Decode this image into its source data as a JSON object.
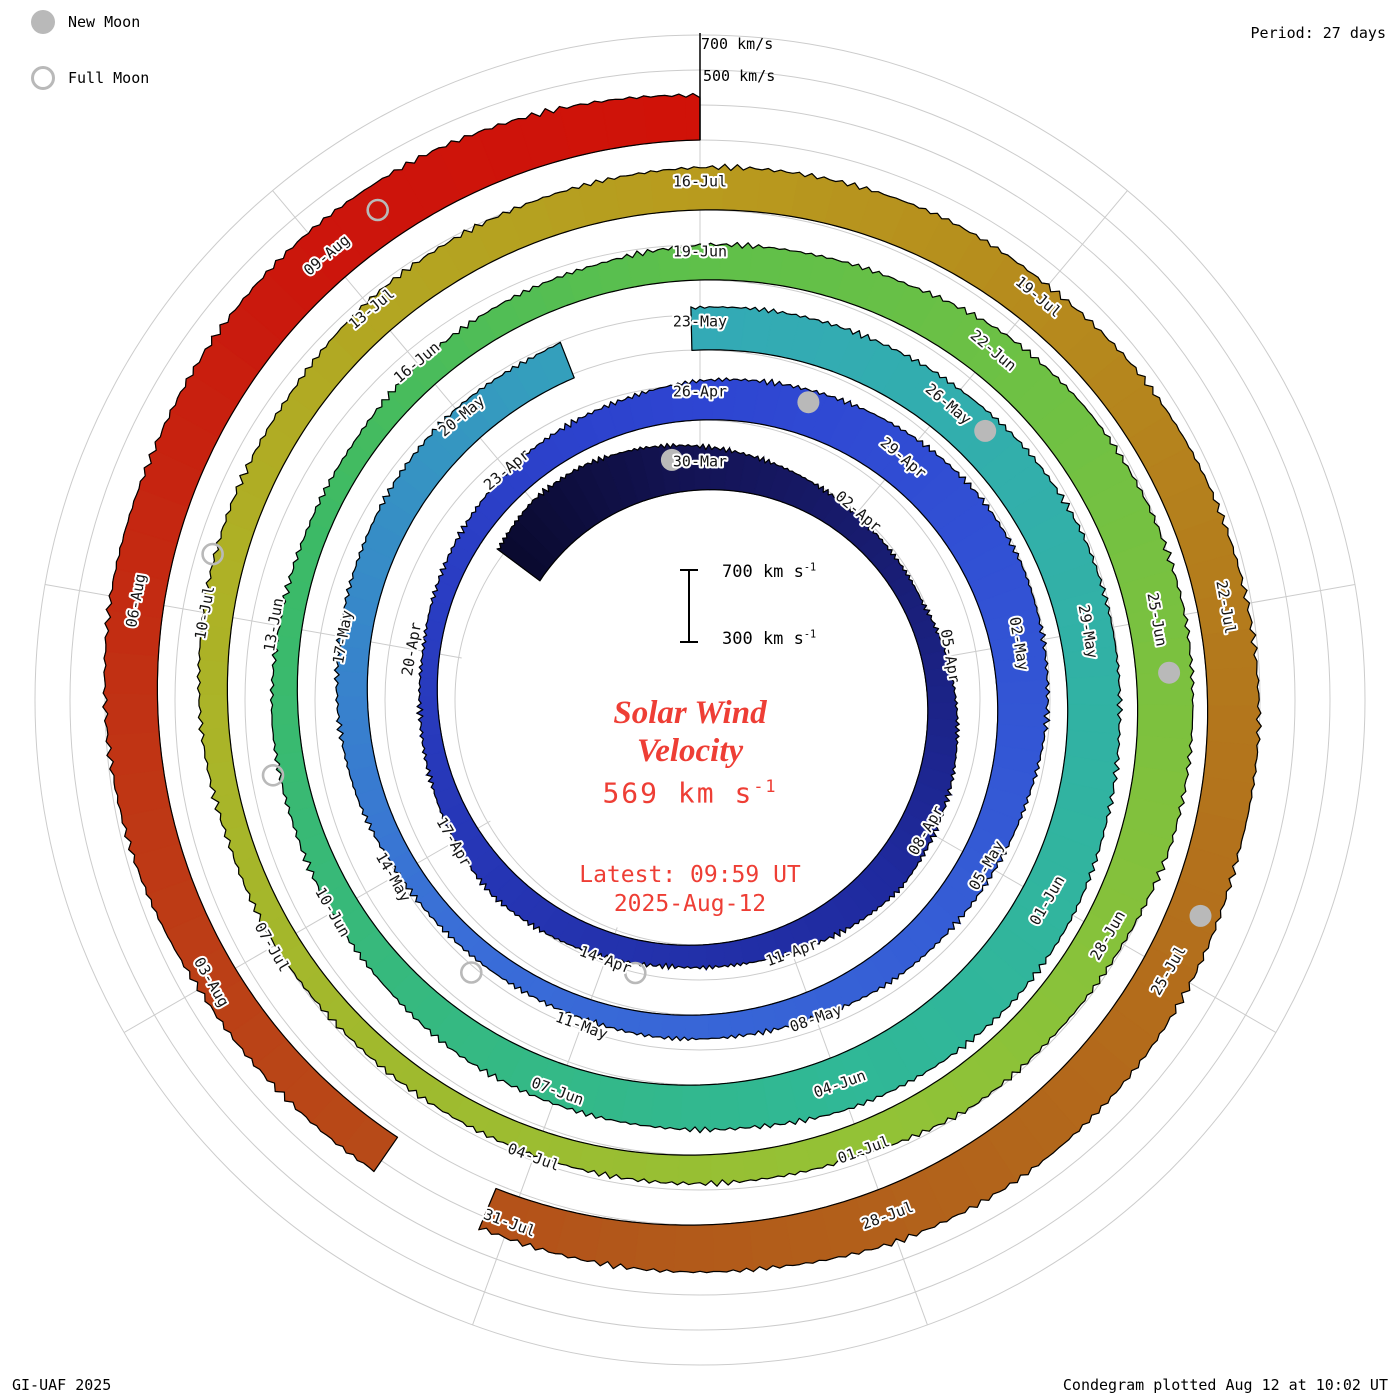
{
  "legend": {
    "new_moon_label": "New Moon",
    "full_moon_label": "Full Moon"
  },
  "header": {
    "period_label": "Period: 27 days"
  },
  "end_scale": {
    "outer_label": "700 km/s",
    "inner_label": "500 km/s"
  },
  "center": {
    "scale_top": {
      "text": "700 km s",
      "sup": "-1"
    },
    "scale_bottom": {
      "text": "300 km s",
      "sup": "-1"
    },
    "title_line1": "Solar Wind",
    "title_line2": "Velocity",
    "speed": {
      "text": "569 km s",
      "sup": "-1"
    },
    "latest_line1": "Latest: 09:59 UT",
    "latest_line2": "2025-Aug-12",
    "accent_color": "#ee3e35"
  },
  "footer": {
    "left": "GI-UAF 2025",
    "right": "Condegram plotted Aug 12 at 10:02 UT"
  },
  "chart_data": {
    "type": "area",
    "variant": "condegram spiral: polar plot, one turn = 27 days, band thickness = solar wind velocity (300-700 km/s)",
    "period_days": 27,
    "rotation_starts": [
      "2025-03-30",
      "2025-04-26",
      "2025-05-23",
      "2025-06-19",
      "2025-07-16"
    ],
    "value_range_km_s": [
      300,
      700
    ],
    "current_speed_km_s": 569,
    "series": {
      "start_date": "2025-03-26",
      "end_date": "2025-08-12",
      "cadence_days": 1,
      "unit": "km/s",
      "velocity_km_s": [
        615,
        650,
        645,
        610,
        565,
        520,
        480,
        448,
        430,
        422,
        452,
        478,
        502,
        522,
        538,
        505,
        465,
        442,
        432,
        452,
        470,
        488,
        462,
        432,
        412,
        402,
        420,
        440,
        462,
        480,
        500,
        538,
        562,
        585,
        612,
        635,
        640,
        622,
        598,
        552,
        522,
        505,
        492,
        462,
        448,
        442,
        425,
        418,
        420,
        430,
        462,
        482,
        492,
        500,
        518,
        528,
        520,
        540,
        558,
        566,
        572,
        585,
        612,
        628,
        622,
        615,
        625,
        648,
        655,
        645,
        628,
        582,
        560,
        545,
        528,
        492,
        472,
        458,
        462,
        438,
        428,
        432,
        458,
        472,
        482,
        512,
        522,
        538,
        595,
        625,
        638,
        645,
        632,
        615,
        572,
        552,
        548,
        492,
        478,
        468,
        455,
        442,
        438,
        445,
        440,
        468,
        482,
        488,
        492,
        522,
        532,
        542,
        558,
        565,
        572,
        560,
        585,
        598,
        605,
        612,
        598,
        622,
        638,
        645,
        635,
        592,
        578,
        560,
        548,
        545,
        552,
        592,
        615,
        628,
        622,
        642,
        650,
        638,
        605,
        569
      ]
    },
    "date_ticks": [
      {
        "label": "30-Mar",
        "day": 4
      },
      {
        "label": "02-Apr",
        "day": 7
      },
      {
        "label": "05-Apr",
        "day": 10
      },
      {
        "label": "08-Apr",
        "day": 13
      },
      {
        "label": "11-Apr",
        "day": 16
      },
      {
        "label": "14-Apr",
        "day": 19
      },
      {
        "label": "17-Apr",
        "day": 22
      },
      {
        "label": "20-Apr",
        "day": 25
      },
      {
        "label": "23-Apr",
        "day": 28
      },
      {
        "label": "26-Apr",
        "day": 31
      },
      {
        "label": "29-Apr",
        "day": 34
      },
      {
        "label": "02-May",
        "day": 37
      },
      {
        "label": "05-May",
        "day": 40
      },
      {
        "label": "08-May",
        "day": 43
      },
      {
        "label": "11-May",
        "day": 46
      },
      {
        "label": "14-May",
        "day": 49
      },
      {
        "label": "17-May",
        "day": 52
      },
      {
        "label": "20-May",
        "day": 55
      },
      {
        "label": "23-May",
        "day": 58
      },
      {
        "label": "26-May",
        "day": 61
      },
      {
        "label": "29-May",
        "day": 64
      },
      {
        "label": "01-Jun",
        "day": 67
      },
      {
        "label": "04-Jun",
        "day": 70
      },
      {
        "label": "07-Jun",
        "day": 73
      },
      {
        "label": "10-Jun",
        "day": 76
      },
      {
        "label": "13-Jun",
        "day": 79
      },
      {
        "label": "16-Jun",
        "day": 82
      },
      {
        "label": "19-Jun",
        "day": 85
      },
      {
        "label": "22-Jun",
        "day": 88
      },
      {
        "label": "25-Jun",
        "day": 91
      },
      {
        "label": "28-Jun",
        "day": 94
      },
      {
        "label": "01-Jul",
        "day": 97
      },
      {
        "label": "04-Jul",
        "day": 100
      },
      {
        "label": "07-Jul",
        "day": 103
      },
      {
        "label": "10-Jul",
        "day": 106
      },
      {
        "label": "13-Jul",
        "day": 109
      },
      {
        "label": "16-Jul",
        "day": 112
      },
      {
        "label": "19-Jul",
        "day": 115
      },
      {
        "label": "22-Jul",
        "day": 118
      },
      {
        "label": "25-Jul",
        "day": 121
      },
      {
        "label": "28-Jul",
        "day": 124
      },
      {
        "label": "31-Jul",
        "day": 127
      },
      {
        "label": "03-Aug",
        "day": 130
      },
      {
        "label": "06-Aug",
        "day": 133
      },
      {
        "label": "09-Aug",
        "day": 136
      }
    ],
    "gaps": [
      {
        "from": "2025-05-21",
        "to": "2025-05-23",
        "day_from": 56.4,
        "day_to": 57.9
      },
      {
        "from": "2025-07-31",
        "to": "2025-08-01",
        "day_from": 127.2,
        "day_to": 128.1
      }
    ],
    "moons": {
      "new": [
        {
          "date": "2025-03-29",
          "day": 3.5
        },
        {
          "date": "2025-04-27",
          "day": 32.5
        },
        {
          "date": "2025-05-26",
          "day": 61.5
        },
        {
          "date": "2025-06-25",
          "day": 91.5
        },
        {
          "date": "2025-07-24",
          "day": 120.5
        }
      ],
      "full": [
        {
          "date": "2025-04-13",
          "day": 18.5
        },
        {
          "date": "2025-05-12",
          "day": 47.5
        },
        {
          "date": "2025-06-11",
          "day": 77.5
        },
        {
          "date": "2025-07-10",
          "day": 106.5
        },
        {
          "date": "2025-08-09",
          "day": 136.5
        }
      ]
    },
    "colormap": [
      [
        0,
        "#0a0a2e"
      ],
      [
        4,
        "#141456"
      ],
      [
        14,
        "#1f2a9e"
      ],
      [
        31,
        "#2e45d2"
      ],
      [
        48,
        "#3a6ed8"
      ],
      [
        58,
        "#33aab6"
      ],
      [
        70,
        "#30b896"
      ],
      [
        80,
        "#3cba66"
      ],
      [
        85,
        "#5fc04a"
      ],
      [
        97,
        "#93c236"
      ],
      [
        106,
        "#adb226"
      ],
      [
        112,
        "#b89b1e"
      ],
      [
        119,
        "#b3761c"
      ],
      [
        126,
        "#b2581a"
      ],
      [
        132,
        "#c03314"
      ],
      [
        136,
        "#cc150c"
      ],
      [
        139,
        "#d01208"
      ]
    ],
    "layout": {
      "center": [
        700,
        700
      ],
      "base_radius": 210,
      "radius_per_rotation": 70,
      "band_full_height": 66,
      "label_offset": 28,
      "reference_day": 4,
      "grid_on": true,
      "grid_color": "#cccccc",
      "moon_color": "#b9b9b9"
    }
  }
}
